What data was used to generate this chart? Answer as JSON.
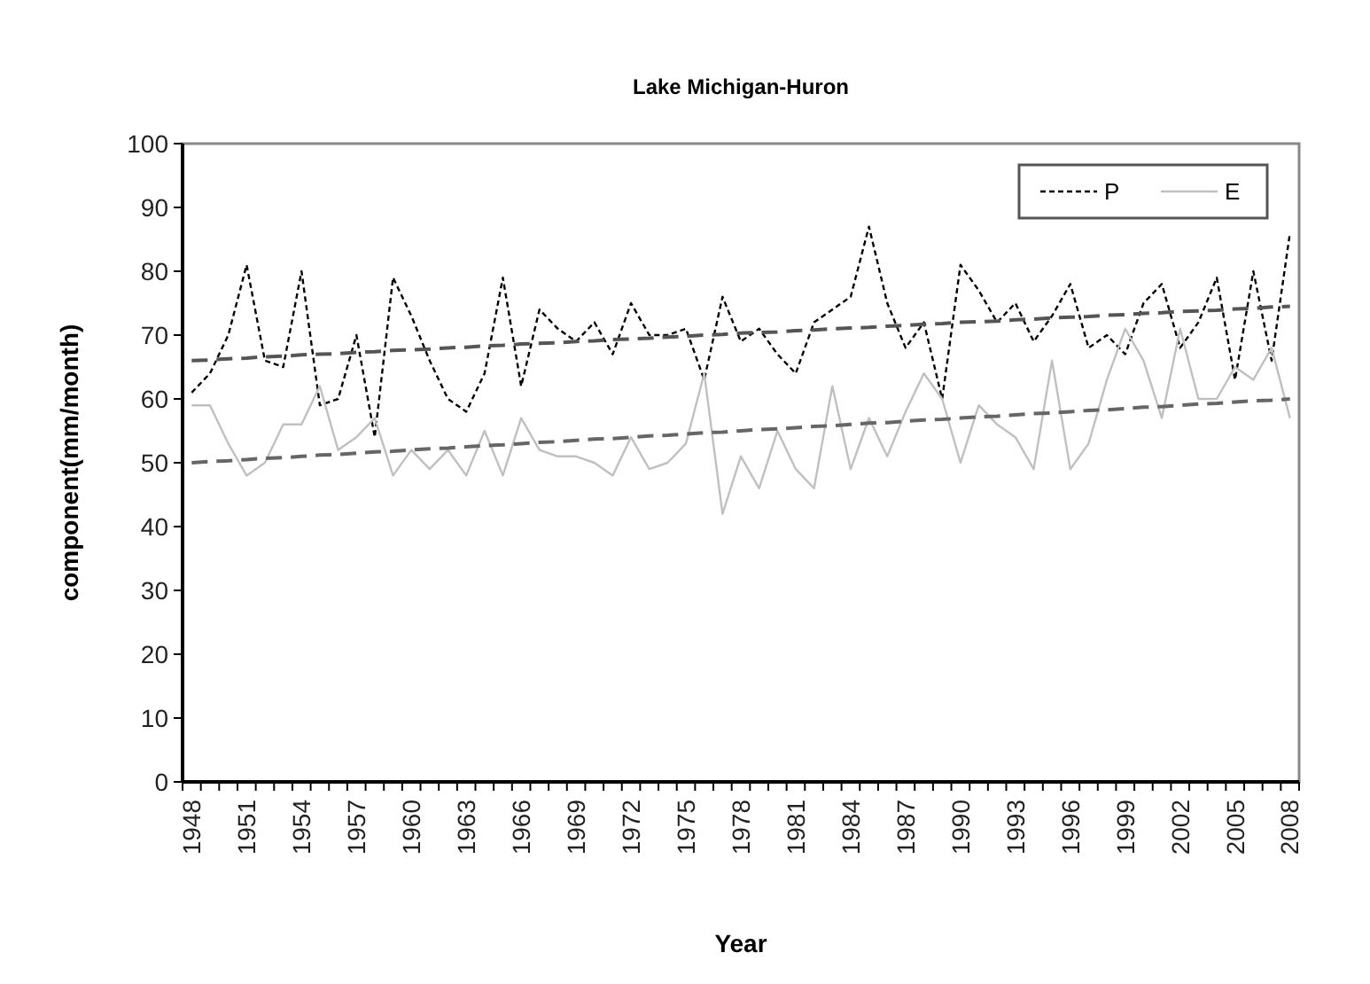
{
  "chart_data": {
    "type": "line",
    "title": "Lake Michigan-Huron",
    "xlabel": "Year",
    "ylabel": "component(mm/month)",
    "categories": [
      "1948",
      null,
      null,
      "1951",
      null,
      null,
      "1954",
      null,
      null,
      "1957",
      null,
      null,
      "1960",
      null,
      null,
      "1963",
      null,
      null,
      "1966",
      null,
      null,
      "1969",
      null,
      null,
      "1972",
      null,
      null,
      "1975",
      null,
      null,
      "1978",
      null,
      null,
      "1981",
      null,
      null,
      "1984",
      null,
      null,
      "1987",
      null,
      null,
      "1990",
      null,
      null,
      "1993",
      null,
      null,
      "1996",
      null,
      null,
      "1999",
      null,
      null,
      "2002",
      null,
      null,
      "2005",
      null,
      null,
      "2008"
    ],
    "series": [
      {
        "name": "P",
        "color": "#000000",
        "line_style": "dashed",
        "values": [
          61,
          64,
          70,
          81,
          66,
          65,
          80,
          59,
          60,
          70,
          54,
          79,
          73,
          66,
          60,
          58,
          64,
          79,
          62,
          74,
          71,
          69,
          72,
          67,
          75,
          70,
          70,
          71,
          63,
          76,
          69,
          71,
          67,
          64,
          72,
          74,
          76,
          87,
          75,
          68,
          72,
          60,
          81,
          77,
          72,
          75,
          69,
          73,
          78,
          68,
          70,
          67,
          75,
          78,
          68,
          72,
          79,
          63,
          80,
          66,
          86
        ]
      },
      {
        "name": "E",
        "color": "#c0c0c0",
        "line_style": "solid",
        "values": [
          59,
          59,
          53,
          48,
          50,
          56,
          56,
          62,
          52,
          54,
          57,
          48,
          52,
          49,
          52,
          48,
          55,
          48,
          57,
          52,
          51,
          51,
          50,
          48,
          54,
          49,
          50,
          53,
          64,
          42,
          51,
          46,
          55,
          49,
          46,
          62,
          49,
          57,
          51,
          58,
          64,
          60,
          50,
          59,
          56,
          54,
          49,
          66,
          49,
          53,
          63,
          71,
          66,
          57,
          71,
          60,
          60,
          65,
          63,
          68,
          57
        ]
      },
      {
        "type": "line",
        "color": "#555555",
        "line_style": "dashed",
        "values": [
          66.0,
          66.1,
          66.3,
          66.4,
          66.6,
          66.7,
          66.9,
          67.0,
          67.1,
          67.3,
          67.4,
          67.6,
          67.7,
          67.8,
          68.0,
          68.1,
          68.3,
          68.4,
          68.6,
          68.7,
          68.8,
          69.0,
          69.1,
          69.3,
          69.4,
          69.5,
          69.7,
          69.8,
          70.0,
          70.1,
          70.3,
          70.4,
          70.5,
          70.7,
          70.8,
          71.0,
          71.1,
          71.2,
          71.4,
          71.5,
          71.7,
          71.8,
          72.0,
          72.1,
          72.2,
          72.4,
          72.5,
          72.7,
          72.8,
          72.9,
          73.1,
          73.2,
          73.4,
          73.5,
          73.7,
          73.8,
          73.9,
          74.1,
          74.2,
          74.4,
          74.5
        ]
      },
      {
        "type": "line",
        "color": "#666666",
        "line_style": "dashed",
        "values": [
          50.0,
          50.2,
          50.3,
          50.5,
          50.7,
          50.8,
          51.0,
          51.2,
          51.3,
          51.5,
          51.7,
          51.8,
          52.0,
          52.2,
          52.3,
          52.5,
          52.7,
          52.8,
          53.0,
          53.2,
          53.3,
          53.5,
          53.7,
          53.8,
          54.0,
          54.2,
          54.3,
          54.5,
          54.7,
          54.8,
          55.0,
          55.2,
          55.3,
          55.5,
          55.7,
          55.8,
          56.0,
          56.2,
          56.3,
          56.5,
          56.7,
          56.8,
          57.0,
          57.2,
          57.3,
          57.5,
          57.7,
          57.8,
          58.0,
          58.2,
          58.3,
          58.5,
          58.7,
          58.8,
          59.0,
          59.2,
          59.3,
          59.5,
          59.7,
          59.8,
          60.0
        ]
      }
    ],
    "ylim": [
      0,
      100
    ],
    "yticks": [
      0,
      10,
      20,
      30,
      40,
      50,
      60,
      70,
      80,
      90,
      100
    ],
    "grid": false,
    "legend": "top right",
    "marker": "none"
  }
}
